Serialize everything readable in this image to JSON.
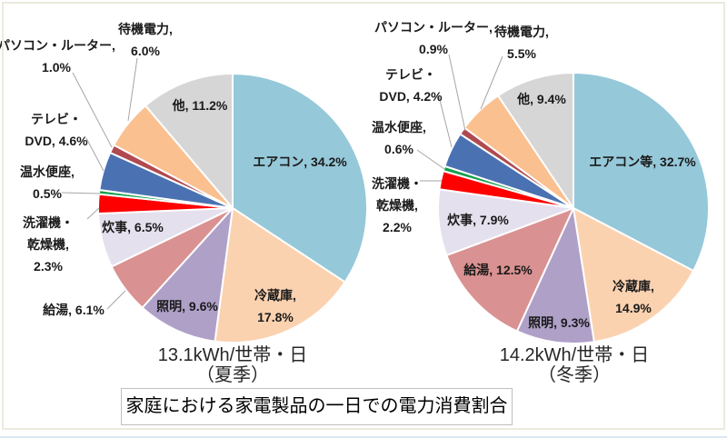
{
  "page_title": "家庭における家電製品の一日での電力消費割合",
  "colors": {
    "chart_area_border": "#ECEADF",
    "leader_line": "#A6A6A6",
    "label_text": "#1A1A1A",
    "title_box_border": "#BFBFBF",
    "bottom_edge_strip": "#DCE8F4"
  },
  "chart_data": [
    {
      "type": "pie",
      "season": "夏季",
      "caption_line1": "13.1kWh/世帯・日",
      "caption_line2": "（夏季）",
      "start_angle": "12時方向から時計回り",
      "categories": [
        "エアコン",
        "冷蔵庫",
        "照明",
        "給湯",
        "炊事",
        "洗濯機・乾燥機",
        "温水便座",
        "テレビ・DVD",
        "パソコン・ルーター",
        "待機電力",
        "他"
      ],
      "values": [
        34.2,
        17.8,
        9.6,
        6.1,
        6.5,
        2.3,
        0.5,
        4.6,
        1.0,
        6.0,
        11.2
      ],
      "labels": [
        [
          "エアコン, 34.2%"
        ],
        [
          "冷蔵庫,",
          "17.8%"
        ],
        [
          "照明, 9.6%"
        ],
        [
          "給湯, 6.1%"
        ],
        [
          "炊事, 6.5%"
        ],
        [
          "洗濯機・",
          "乾燥機,",
          "2.3%"
        ],
        [
          "温水便座,",
          "0.5%"
        ],
        [
          "テレビ・",
          "DVD, 4.6%"
        ],
        [
          "パソコン・ルーター,",
          "1.0%"
        ],
        [
          "待機電力,",
          "6.0%"
        ],
        [
          "他, 11.2%"
        ]
      ],
      "colors": [
        "#95C8D9",
        "#FBD2B0",
        "#AFA0C8",
        "#DA9191",
        "#E5E0ED",
        "#FE0000",
        "#14A04B",
        "#4A72B2",
        "#B04A50",
        "#FAC090",
        "#D6D6D6"
      ]
    },
    {
      "type": "pie",
      "season": "冬季",
      "caption_line1": "14.2kWh/世帯・日",
      "caption_line2": "（冬季）",
      "start_angle": "12時方向から時計回り",
      "categories": [
        "エアコン等",
        "冷蔵庫",
        "照明",
        "給湯",
        "炊事",
        "洗濯機・乾燥機",
        "温水便座",
        "テレビ・DVD",
        "パソコン・ルーター",
        "待機電力",
        "他"
      ],
      "values": [
        32.7,
        14.9,
        9.3,
        12.5,
        7.9,
        2.2,
        0.6,
        4.2,
        0.9,
        5.5,
        9.4
      ],
      "labels": [
        [
          "エアコン等, 32.7%"
        ],
        [
          "冷蔵庫,",
          "14.9%"
        ],
        [
          "照明, 9.3%"
        ],
        [
          "給湯, 12.5%"
        ],
        [
          "炊事, 7.9%"
        ],
        [
          "洗濯機・",
          "乾燥機,",
          "2.2%"
        ],
        [
          "温水便座,",
          "0.6%"
        ],
        [
          "テレビ・",
          "DVD, 4.2%"
        ],
        [
          "パソコン・ルーター,",
          "0.9%"
        ],
        [
          "待機電力,",
          "5.5%"
        ],
        [
          "他, 9.4%"
        ]
      ],
      "colors": [
        "#95C8D9",
        "#FBD2B0",
        "#AFA0C8",
        "#DA9191",
        "#E5E0ED",
        "#FE0000",
        "#14A04B",
        "#4A72B2",
        "#B04A50",
        "#FAC090",
        "#D6D6D6"
      ]
    }
  ]
}
